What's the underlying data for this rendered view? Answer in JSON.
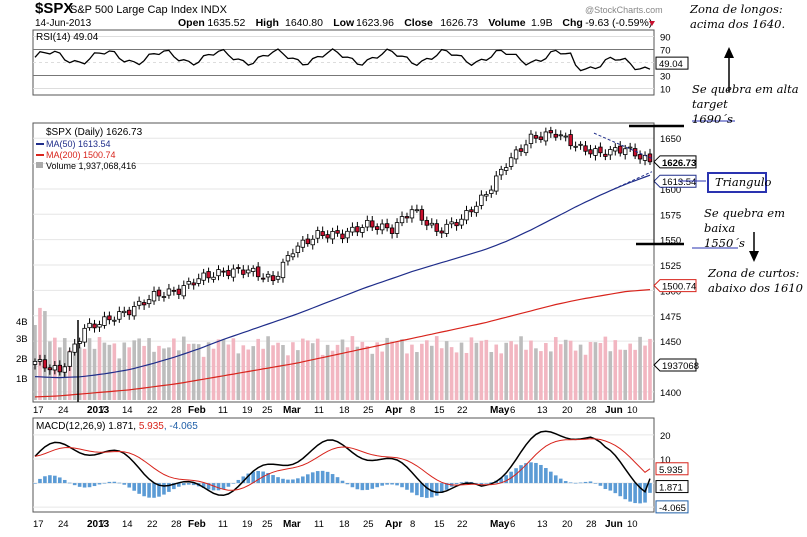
{
  "header": {
    "symbol": "$SPX",
    "name": "S&P 500 Large Cap Index",
    "exchange": "INDX",
    "date": "14-Jun-2013",
    "watermark": "@StockCharts.com",
    "stats": [
      {
        "label": "Open",
        "value": "1635.52"
      },
      {
        "label": "High",
        "value": "1640.80"
      },
      {
        "label": "Low",
        "value": "1623.96"
      },
      {
        "label": "Close",
        "value": "1626.73"
      },
      {
        "label": "Volume",
        "value": "1.9B"
      },
      {
        "label": "Chg",
        "value": "-9.63 (-0.59%)"
      }
    ]
  },
  "rsi": {
    "label": "RSI(14) 49.04",
    "value_tag": "49.04",
    "ticks": [
      "90",
      "70",
      "50",
      "30",
      "10"
    ],
    "levels": [
      90,
      70,
      50,
      30,
      10
    ]
  },
  "price": {
    "legend_title": "$SPX (Daily) 1626.73",
    "ma50_label": "MA(50) 1613.54",
    "ma200_label": "MA(200) 1500.74",
    "volume_label": "Volume 1,937,068,416",
    "close_tag": "1626.73",
    "ma50_tag": "1613.54",
    "ma200_tag": "1500.74",
    "volume_tag": "1937068",
    "ticks": [
      "1650",
      "1625",
      "1600",
      "1575",
      "1550",
      "1525",
      "1500",
      "1475",
      "1450",
      "1425",
      "1400"
    ],
    "volume_ticks": [
      "4B",
      "3B",
      "2B",
      "1B"
    ]
  },
  "macd": {
    "label_prefix": "MACD(12,26,9)",
    "macd_value": "1.871",
    "signal_value": "5.935",
    "hist_value": "-4.065",
    "ticks": [
      "20",
      "10",
      "0",
      "-10"
    ]
  },
  "x_axis": {
    "labels": [
      "17",
      "24",
      "2013",
      "7",
      "14",
      "22",
      "28",
      "Feb",
      "11",
      "19",
      "25",
      "Mar",
      "11",
      "18",
      "25",
      "Apr",
      "8",
      "15",
      "22",
      "May",
      "6",
      "13",
      "20",
      "28",
      "Jun",
      "10"
    ]
  },
  "annotations": {
    "longs": [
      "Zona de longos:",
      "acima dos 1640."
    ],
    "break_up": [
      "Se quebra em alta",
      "target",
      "1690´s"
    ],
    "triangle": "Triangulo",
    "break_down": [
      "Se quebra em",
      "baixa",
      "1550´s"
    ],
    "shorts": [
      "Zona de curtos:",
      "abaixo dos 1610"
    ]
  },
  "chart_data": {
    "type": "line",
    "title": "$SPX S&P 500 Large Cap Index INDX",
    "x": [
      "2012-12-17",
      "2012-12-24",
      "2013-01-02",
      "2013-01-07",
      "2013-01-14",
      "2013-01-22",
      "2013-01-28",
      "2013-02-04",
      "2013-02-11",
      "2013-02-19",
      "2013-02-25",
      "2013-03-04",
      "2013-03-11",
      "2013-03-18",
      "2013-03-25",
      "2013-04-01",
      "2013-04-08",
      "2013-04-15",
      "2013-04-22",
      "2013-04-29",
      "2013-05-06",
      "2013-05-13",
      "2013-05-20",
      "2013-05-28",
      "2013-06-03",
      "2013-06-10",
      "2013-06-14"
    ],
    "series": [
      {
        "name": "$SPX (Daily)",
        "values": [
          1430,
          1420,
          1462,
          1470,
          1480,
          1495,
          1500,
          1512,
          1518,
          1520,
          1510,
          1540,
          1555,
          1555,
          1565,
          1560,
          1580,
          1558,
          1570,
          1595,
          1625,
          1650,
          1655,
          1640,
          1635,
          1640,
          1626.73
        ]
      },
      {
        "name": "MA(50)",
        "values": [
          1415,
          1414,
          1415,
          1418,
          1422,
          1428,
          1435,
          1443,
          1452,
          1460,
          1468,
          1476,
          1485,
          1494,
          1503,
          1511,
          1519,
          1526,
          1533,
          1540,
          1549,
          1560,
          1572,
          1584,
          1595,
          1605,
          1613.54
        ]
      },
      {
        "name": "MA(200)",
        "values": [
          1395,
          1396,
          1398,
          1400,
          1402,
          1405,
          1408,
          1412,
          1416,
          1420,
          1424,
          1428,
          1433,
          1438,
          1443,
          1448,
          1453,
          1458,
          1463,
          1468,
          1474,
          1480,
          1486,
          1491,
          1495,
          1499,
          1500.74
        ]
      }
    ],
    "ylim": [
      1390,
      1665
    ],
    "rsi_ylim": [
      0,
      100
    ],
    "macd_ylim": [
      -12,
      27
    ],
    "macd_last": {
      "macd": 1.871,
      "signal": 5.935,
      "histogram": -4.065
    }
  }
}
